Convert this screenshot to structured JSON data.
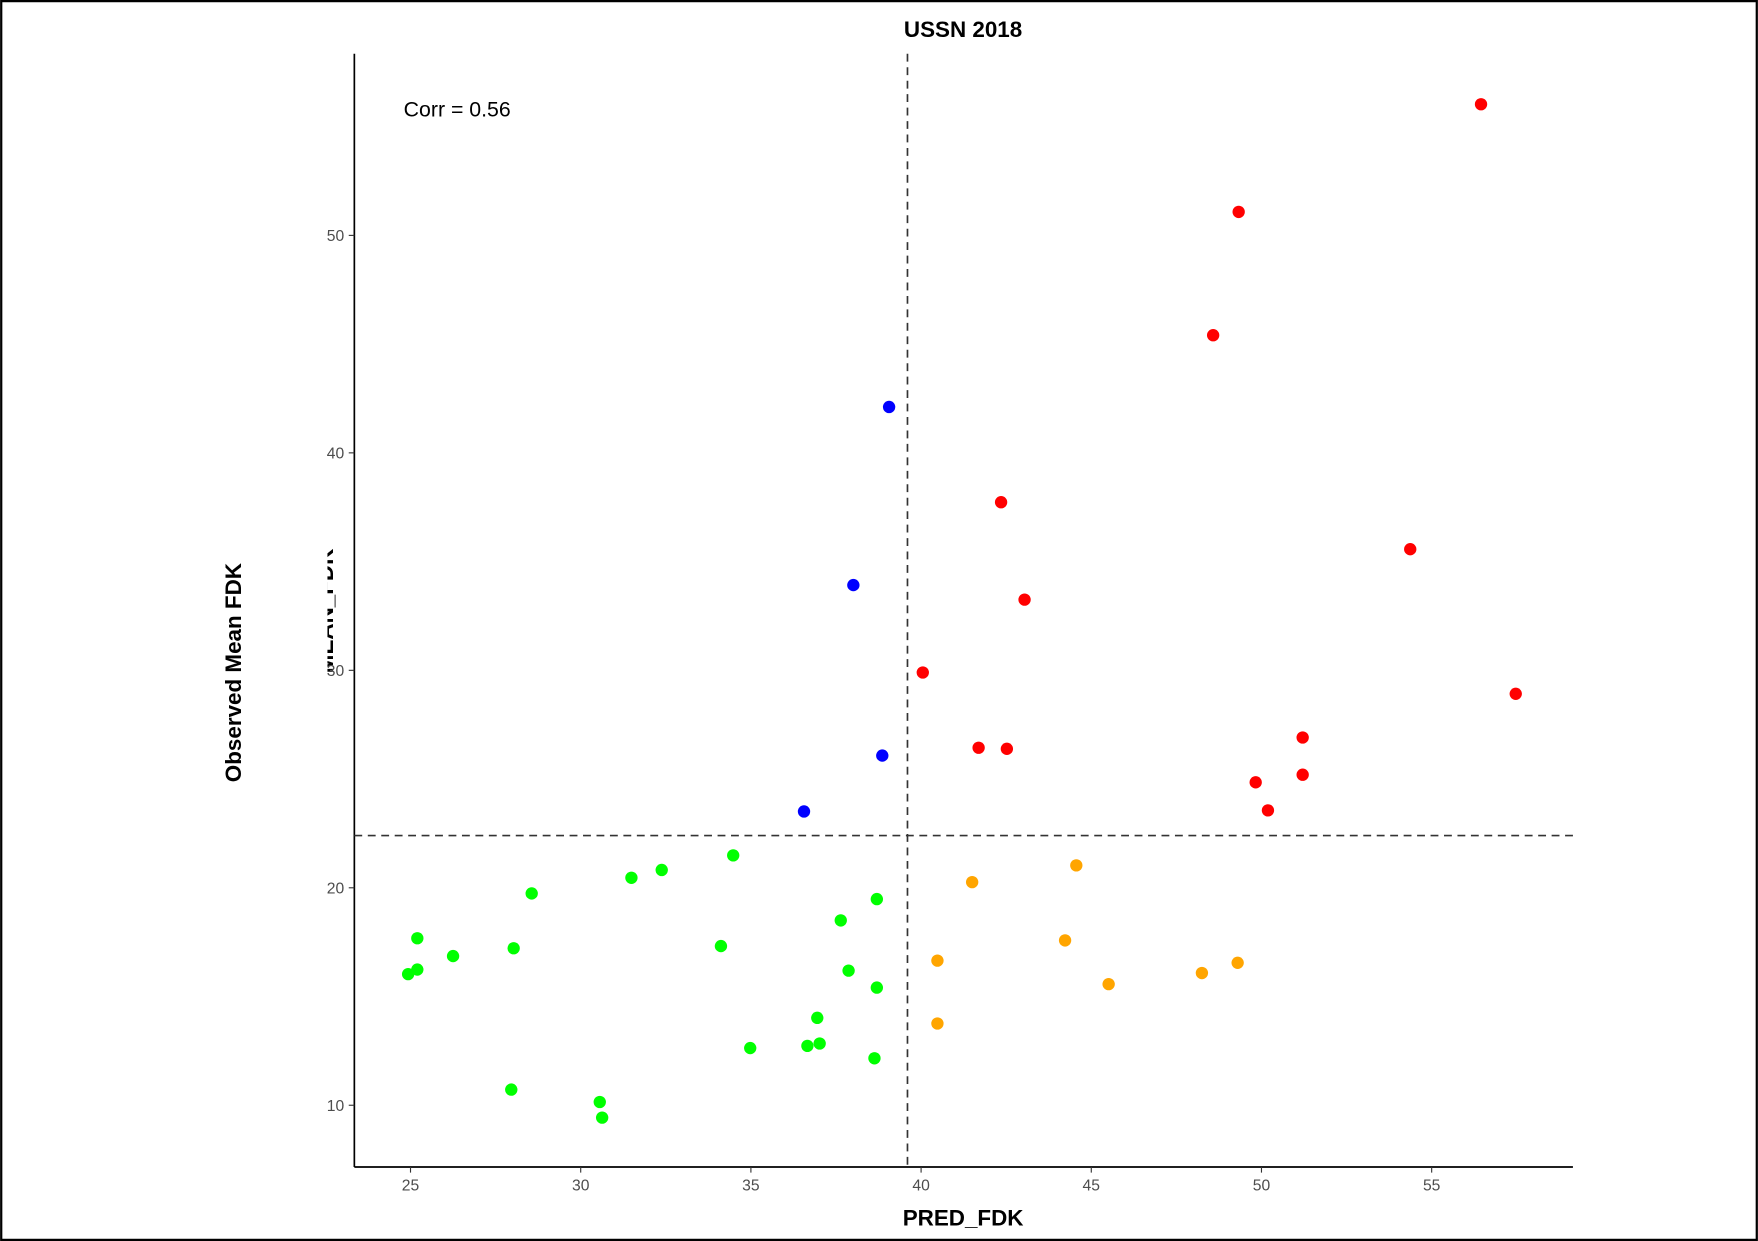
{
  "chart_data": {
    "type": "scatter",
    "title": "USSN 2018",
    "x_label": "PRED_FDK",
    "y_label": "MEAN_FDK",
    "y_label_outer": "Observed Mean FDK",
    "annotation": "Corr =  0.56",
    "xlim": [
      23.35,
      59.15
    ],
    "ylim": [
      7.16,
      58.35
    ],
    "xticks": [
      25,
      30,
      35,
      40,
      45,
      50,
      55
    ],
    "yticks": [
      10,
      20,
      30,
      40,
      50
    ],
    "vline": 39.6,
    "hline": 22.4,
    "grid": false,
    "series": [
      {
        "color": "#ff0000",
        "x": [
          56.45,
          49.33,
          48.58,
          42.35,
          54.37,
          43.04,
          40.05,
          57.47,
          51.21,
          41.69,
          42.52,
          51.21,
          49.83,
          50.19
        ],
        "values": [
          56.03,
          51.08,
          45.41,
          37.73,
          35.57,
          33.25,
          29.9,
          28.92,
          26.91,
          26.44,
          26.39,
          25.2,
          24.85,
          23.56
        ]
      },
      {
        "color": "#0000ff",
        "x": [
          39.06,
          38.01,
          38.86,
          36.56
        ],
        "values": [
          42.11,
          33.92,
          26.08,
          23.51
        ]
      },
      {
        "color": "#ffa500",
        "x": [
          44.56,
          41.5,
          44.23,
          40.48,
          49.3,
          48.25,
          45.51,
          40.48
        ],
        "values": [
          21.03,
          20.26,
          17.58,
          16.65,
          16.55,
          16.08,
          15.57,
          13.76
        ]
      },
      {
        "color": "#00ff00",
        "x": [
          34.48,
          32.38,
          31.49,
          28.56,
          38.7,
          25.2,
          37.64,
          28.03,
          34.12,
          26.25,
          25.2,
          24.93,
          37.87,
          38.7,
          36.95,
          34.98,
          36.66,
          37.02,
          38.63,
          27.96,
          30.56,
          30.63
        ],
        "values": [
          21.49,
          20.82,
          20.46,
          19.74,
          19.48,
          17.68,
          18.5,
          17.22,
          17.32,
          16.86,
          16.24,
          16.03,
          16.19,
          15.41,
          14.02,
          12.63,
          12.73,
          12.84,
          12.16,
          10.72,
          10.15,
          9.43
        ]
      }
    ]
  }
}
